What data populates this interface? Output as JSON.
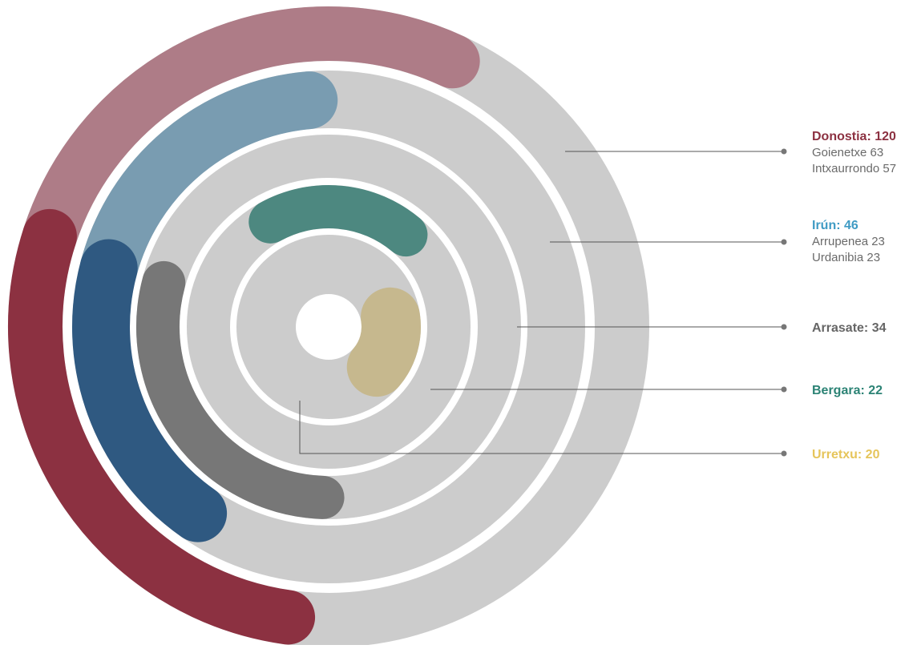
{
  "chart_data": {
    "type": "radial-bar",
    "series": [
      {
        "key": "donostia",
        "name": "Donostia",
        "value": 120,
        "value_text": "Donostia: 120",
        "color": "#8c3141",
        "breakdown": [
          {
            "name": "Goienetxe",
            "value": 63,
            "text": "Goienetxe 63",
            "color": "#8c3141"
          },
          {
            "name": "Intxaurrondo",
            "value": 57,
            "text": "Intxaurrondo 57",
            "color": "#ae7c87"
          }
        ]
      },
      {
        "key": "irun",
        "name": "Irún",
        "value": 46,
        "value_text": "Irún: 46",
        "color": "#3f9bc4",
        "breakdown": [
          {
            "name": "Arrupenea",
            "value": 23,
            "text": "Arrupenea 23",
            "color": "#2f5981"
          },
          {
            "name": "Urdanibia",
            "value": 23,
            "text": "Urdanibia 23",
            "color": "#799cb1"
          }
        ]
      },
      {
        "key": "arrasate",
        "name": "Arrasate",
        "value": 34,
        "value_text": "Arrasate: 34",
        "color": "#777777",
        "text_color": "#666666",
        "breakdown": []
      },
      {
        "key": "bergara",
        "name": "Bergara",
        "value": 22,
        "value_text": "Bergara: 22",
        "color": "#4d8880",
        "text_color": "#2c8375",
        "breakdown": []
      },
      {
        "key": "urretxu",
        "name": "Urretxu",
        "value": 20,
        "value_text": "Urretxu: 20",
        "color": "#c6b88e",
        "text_color": "#e6c55b",
        "breakdown": []
      }
    ],
    "track_color": "#cccccc",
    "title": "",
    "legend_placement": "right"
  }
}
